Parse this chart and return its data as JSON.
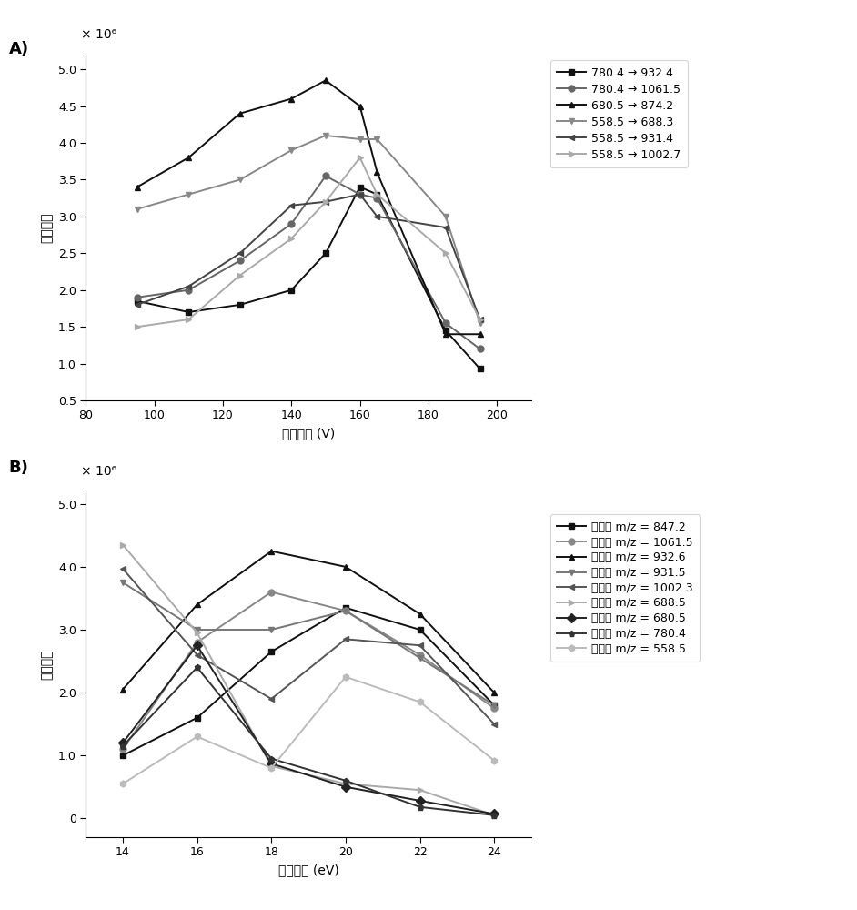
{
  "panel_A": {
    "xlabel": "碎裂电压 (V)",
    "ylabel": "离子响应",
    "title_label": "A)",
    "scale_label": "× 10⁶",
    "xlim": [
      80,
      210
    ],
    "ylim": [
      0.5,
      5.2
    ],
    "xticks": [
      80,
      100,
      120,
      140,
      160,
      180,
      200
    ],
    "yticks": [
      0.5,
      1.0,
      1.5,
      2.0,
      2.5,
      3.0,
      3.5,
      4.0,
      4.5,
      5.0
    ],
    "yticklabels": [
      "0.5",
      "1.0",
      "1.5",
      "2.0",
      "2.5",
      "3.0",
      "3.5",
      "4.0",
      "4.5",
      "5.0"
    ],
    "series": [
      {
        "label": "780.4 → 932.4",
        "color": "#111111",
        "marker": "s",
        "x": [
          95,
          110,
          125,
          140,
          150,
          160,
          165,
          185,
          195
        ],
        "y": [
          1.85,
          1.7,
          1.8,
          2.0,
          2.5,
          3.4,
          3.3,
          1.45,
          0.93
        ]
      },
      {
        "label": "780.4 → 1061.5",
        "color": "#666666",
        "marker": "o",
        "x": [
          95,
          110,
          125,
          140,
          150,
          160,
          165,
          185,
          195
        ],
        "y": [
          1.9,
          2.0,
          2.4,
          2.9,
          3.55,
          3.3,
          3.25,
          1.55,
          1.2
        ]
      },
      {
        "label": "680.5 → 874.2",
        "color": "#111111",
        "marker": "^",
        "x": [
          95,
          110,
          125,
          140,
          150,
          160,
          165,
          185,
          195
        ],
        "y": [
          3.4,
          3.8,
          4.4,
          4.6,
          4.85,
          4.5,
          3.6,
          1.4,
          1.4
        ]
      },
      {
        "label": "558.5 → 688.3",
        "color": "#888888",
        "marker": "v",
        "x": [
          95,
          110,
          125,
          140,
          150,
          160,
          165,
          185,
          195
        ],
        "y": [
          3.1,
          3.3,
          3.5,
          3.9,
          4.1,
          4.05,
          4.05,
          3.0,
          1.55
        ]
      },
      {
        "label": "558.5 → 931.4",
        "color": "#444444",
        "marker": "<",
        "x": [
          95,
          110,
          125,
          140,
          150,
          160,
          165,
          185,
          195
        ],
        "y": [
          1.8,
          2.05,
          2.5,
          3.15,
          3.2,
          3.3,
          3.0,
          2.85,
          1.6
        ]
      },
      {
        "label": "558.5 → 1002.7",
        "color": "#aaaaaa",
        "marker": ">",
        "x": [
          95,
          110,
          125,
          140,
          150,
          160,
          165,
          185,
          195
        ],
        "y": [
          1.5,
          1.6,
          2.2,
          2.7,
          3.2,
          3.8,
          3.3,
          2.5,
          1.6
        ]
      }
    ]
  },
  "panel_B": {
    "xlabel": "碰撞能量 (eV)",
    "ylabel": "离子响应",
    "title_label": "B)",
    "scale_label": "× 10⁶",
    "xlim": [
      13,
      25
    ],
    "ylim": [
      -0.3,
      5.2
    ],
    "xticks": [
      14,
      16,
      18,
      20,
      22,
      24
    ],
    "yticks": [
      0,
      1.0,
      2.0,
      3.0,
      4.0,
      5.0
    ],
    "yticklabels": [
      "0",
      "1.0",
      "2.0",
      "3.0",
      "4.0",
      "5.0"
    ],
    "series": [
      {
        "label": "子离子 m/z = 847.2",
        "color": "#111111",
        "marker": "s",
        "x": [
          14,
          16,
          18,
          20,
          22,
          24
        ],
        "y": [
          1.0,
          1.6,
          2.65,
          3.35,
          3.0,
          1.8
        ]
      },
      {
        "label": "子离子 m/z = 1061.5",
        "color": "#888888",
        "marker": "o",
        "x": [
          14,
          16,
          18,
          20,
          22,
          24
        ],
        "y": [
          1.1,
          2.8,
          3.6,
          3.3,
          2.6,
          1.75
        ]
      },
      {
        "label": "子离子 m/z = 932.6",
        "color": "#111111",
        "marker": "^",
        "x": [
          14,
          16,
          18,
          20,
          22,
          24
        ],
        "y": [
          2.05,
          3.4,
          4.25,
          4.0,
          3.25,
          2.0
        ]
      },
      {
        "label": "子离子 m/z = 931.5",
        "color": "#777777",
        "marker": "v",
        "x": [
          14,
          16,
          18,
          20,
          22,
          24
        ],
        "y": [
          3.75,
          3.0,
          3.0,
          3.3,
          2.55,
          1.8
        ]
      },
      {
        "label": "子离子 m/z = 1002.3",
        "color": "#555555",
        "marker": "<",
        "x": [
          14,
          16,
          18,
          20,
          22,
          24
        ],
        "y": [
          3.97,
          2.6,
          1.9,
          2.85,
          2.75,
          1.5
        ]
      },
      {
        "label": "子离子 m/z = 688.5",
        "color": "#aaaaaa",
        "marker": ">",
        "x": [
          14,
          16,
          18,
          20,
          22,
          24
        ],
        "y": [
          4.35,
          2.95,
          0.83,
          0.55,
          0.45,
          0.05
        ]
      },
      {
        "label": "子离子 m/z = 680.5",
        "color": "#222222",
        "marker": "D",
        "x": [
          14,
          16,
          18,
          20,
          22,
          24
        ],
        "y": [
          1.2,
          2.75,
          0.87,
          0.5,
          0.28,
          0.07
        ]
      },
      {
        "label": "子离子 m/z = 780.4",
        "color": "#333333",
        "marker": "p",
        "x": [
          14,
          16,
          18,
          20,
          22,
          24
        ],
        "y": [
          1.15,
          2.4,
          0.95,
          0.6,
          0.18,
          0.05
        ]
      },
      {
        "label": "子离子 m/z = 558.5",
        "color": "#bbbbbb",
        "marker": "h",
        "x": [
          14,
          16,
          18,
          20,
          22,
          24
        ],
        "y": [
          0.55,
          1.3,
          0.8,
          2.25,
          1.85,
          0.92
        ]
      }
    ]
  }
}
